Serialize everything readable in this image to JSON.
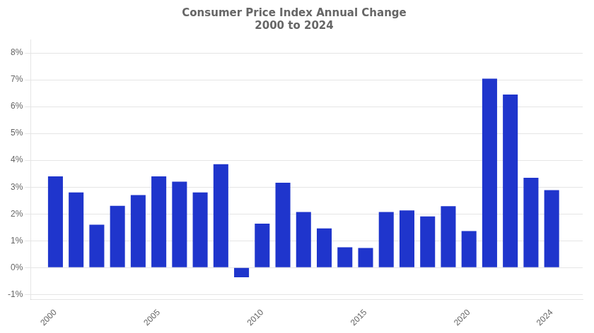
{
  "chart_data": {
    "type": "bar",
    "title": "Consumer Price Index Annual Change",
    "subtitle": "2000 to 2024",
    "x": [
      2000,
      2001,
      2002,
      2003,
      2004,
      2005,
      2006,
      2007,
      2008,
      2009,
      2010,
      2011,
      2012,
      2013,
      2014,
      2015,
      2016,
      2017,
      2018,
      2019,
      2020,
      2021,
      2022,
      2023,
      2024
    ],
    "values": [
      3.4,
      2.8,
      1.6,
      2.3,
      2.7,
      3.4,
      3.2,
      2.8,
      3.85,
      -0.36,
      1.64,
      3.16,
      2.07,
      1.46,
      0.76,
      0.73,
      2.07,
      2.13,
      1.91,
      2.29,
      1.36,
      7.04,
      6.45,
      3.35,
      2.89
    ],
    "color": "#1f35cc",
    "xlim": [
      1998.8,
      2025.5
    ],
    "xticks": [
      2000,
      2005,
      2010,
      2015,
      2020,
      2024
    ],
    "ylim": [
      -1.2,
      8.5
    ],
    "yticks": [
      {
        "value": -1,
        "label": "-1%"
      },
      {
        "value": 0,
        "label": "0%"
      },
      {
        "value": 1,
        "label": "1%"
      },
      {
        "value": 2,
        "label": "2%"
      },
      {
        "value": 3,
        "label": "3%"
      },
      {
        "value": 4,
        "label": "4%"
      },
      {
        "value": 5,
        "label": "5%"
      },
      {
        "value": 6,
        "label": "6%"
      },
      {
        "value": 7,
        "label": "7%"
      },
      {
        "value": 8,
        "label": "8%"
      }
    ],
    "grid": "y"
  }
}
